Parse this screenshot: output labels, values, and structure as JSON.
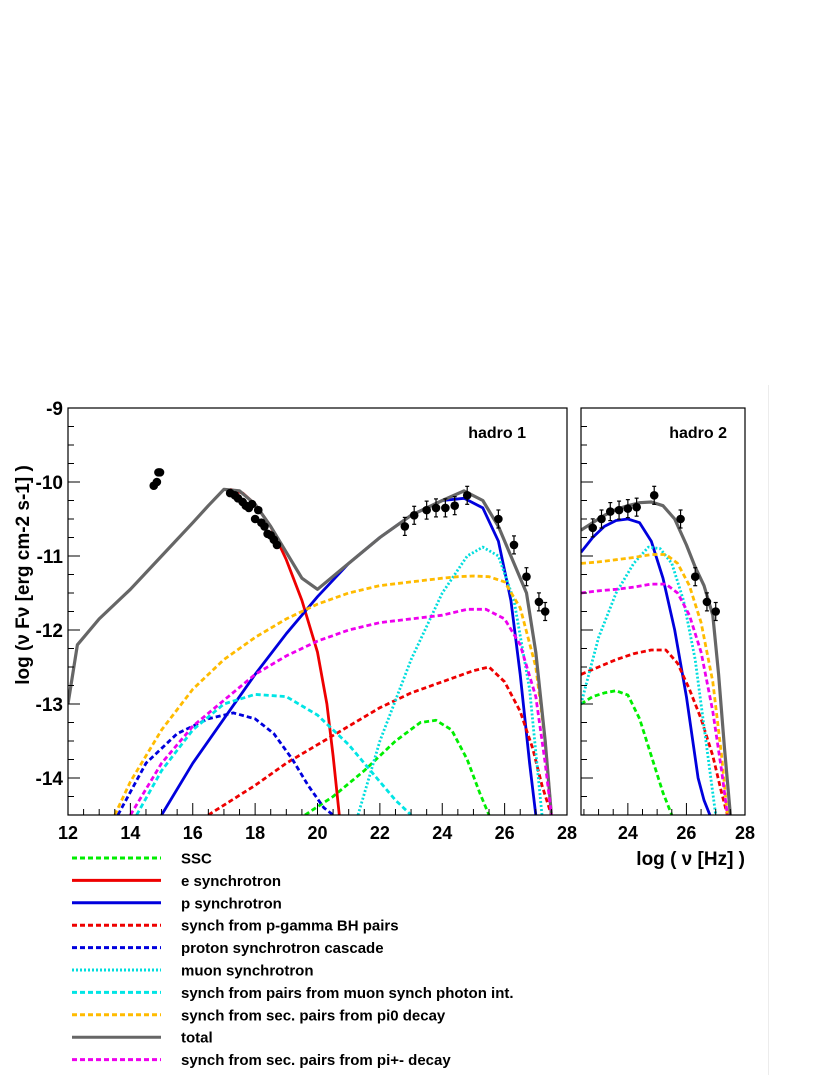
{
  "chart_data": [
    {
      "type": "line",
      "title": "hadro 1",
      "ylabel": "log (ν Fν [erg cm-2 s-1] )",
      "xlim": [
        12,
        28
      ],
      "ylim": [
        -14.5,
        -9
      ],
      "xticks": [
        "12",
        "14",
        "16",
        "18",
        "20",
        "22",
        "24",
        "26",
        "28"
      ],
      "yticks": [
        "-9",
        "-10",
        "-11",
        "-12",
        "-13",
        "-14"
      ],
      "series": [
        {
          "name": "SSC",
          "color": "#00ee00",
          "style": "dashed",
          "x": [
            19.6,
            20.5,
            21.5,
            22.5,
            23.3,
            23.8,
            24.3,
            24.8,
            25.2,
            25.5
          ],
          "y": [
            -14.5,
            -14.25,
            -13.9,
            -13.5,
            -13.25,
            -13.22,
            -13.35,
            -13.75,
            -14.2,
            -14.5
          ]
        },
        {
          "name": "e synchrotron",
          "color": "#ee0000",
          "style": "solid",
          "x": [
            17.2,
            17.6,
            18,
            18.5,
            19,
            19.5,
            20,
            20.3,
            20.5,
            20.7
          ],
          "y": [
            -10.1,
            -10.15,
            -10.3,
            -10.6,
            -11.05,
            -11.6,
            -12.3,
            -13,
            -13.7,
            -14.5
          ]
        },
        {
          "name": "p synchrotron",
          "color": "#0000dd",
          "style": "solid",
          "x": [
            15,
            16,
            17,
            18,
            19,
            20,
            21,
            22,
            23,
            24,
            24.7,
            25.3,
            25.8,
            26.2,
            26.5,
            26.8,
            27
          ],
          "y": [
            -14.5,
            -13.8,
            -13.2,
            -12.6,
            -12.05,
            -11.55,
            -11.1,
            -10.75,
            -10.45,
            -10.25,
            -10.22,
            -10.35,
            -10.8,
            -11.6,
            -12.6,
            -13.8,
            -14.5
          ]
        },
        {
          "name": "synch from p-gamma BH pairs",
          "color": "#ee0000",
          "style": "dashed",
          "x": [
            16.5,
            18,
            19,
            20,
            21,
            22,
            23,
            24,
            25,
            25.5,
            26,
            26.5,
            26.9,
            27.2,
            27.5
          ],
          "y": [
            -14.5,
            -14.1,
            -13.8,
            -13.55,
            -13.3,
            -13.05,
            -12.85,
            -12.7,
            -12.55,
            -12.5,
            -12.7,
            -13.1,
            -13.6,
            -14.1,
            -14.5
          ]
        },
        {
          "name": "proton synchrotron cascade",
          "color": "#0000dd",
          "style": "dashed",
          "x": [
            13.6,
            14.5,
            15.5,
            16.5,
            17.3,
            18,
            18.6,
            19.2,
            19.7,
            20.2,
            20.5
          ],
          "y": [
            -14.5,
            -13.8,
            -13.4,
            -13.2,
            -13.12,
            -13.2,
            -13.4,
            -13.75,
            -14.1,
            -14.4,
            -14.5
          ]
        },
        {
          "name": "muon synchrotron",
          "color": "#00dddd",
          "style": "dotted",
          "x": [
            21.3,
            22,
            23,
            24,
            24.8,
            25.3,
            25.8,
            26.3,
            26.8,
            27.2
          ],
          "y": [
            -14.5,
            -13.5,
            -12.4,
            -11.5,
            -11,
            -10.88,
            -11,
            -11.6,
            -12.8,
            -14.5
          ]
        },
        {
          "name": "synch from pairs from muon synch photon int.",
          "color": "#00e5e5",
          "style": "dashed",
          "x": [
            14.2,
            15,
            16,
            17,
            18,
            19,
            20,
            21,
            21.8,
            22.5,
            23
          ],
          "y": [
            -14.5,
            -13.9,
            -13.35,
            -13,
            -12.87,
            -12.9,
            -13.15,
            -13.55,
            -13.95,
            -14.3,
            -14.5
          ]
        },
        {
          "name": "synch from sec. pairs from pi0 decay",
          "color": "#ffbb00",
          "style": "dashed",
          "x": [
            13.5,
            14,
            15,
            16,
            17,
            18,
            19,
            20,
            21,
            22,
            23,
            24,
            24.5,
            25,
            25.5,
            26,
            26.5,
            27,
            27.3,
            27.5
          ],
          "y": [
            -14.5,
            -14.05,
            -13.35,
            -12.8,
            -12.4,
            -12.1,
            -11.85,
            -11.65,
            -11.5,
            -11.4,
            -11.35,
            -11.3,
            -11.28,
            -11.27,
            -11.28,
            -11.35,
            -11.7,
            -12.5,
            -13.5,
            -14.5
          ]
        },
        {
          "name": "total",
          "color": "#666666",
          "style": "solid",
          "x": [
            12,
            12.3,
            13,
            14,
            15,
            16,
            16.5,
            17,
            17.5,
            18,
            18.5,
            19,
            19.5,
            20,
            21,
            22,
            23,
            24,
            24.7,
            25.3,
            25.8,
            26.3,
            26.7,
            27,
            27.3,
            27.5
          ],
          "y": [
            -13,
            -12.2,
            -11.85,
            -11.45,
            -11,
            -10.55,
            -10.32,
            -10.1,
            -10.12,
            -10.3,
            -10.6,
            -10.95,
            -11.3,
            -11.45,
            -11.1,
            -10.75,
            -10.45,
            -10.25,
            -10.12,
            -10.25,
            -10.6,
            -11.1,
            -11.5,
            -12.3,
            -13.5,
            -14.5
          ]
        },
        {
          "name": "synch from sec. pairs from pi+- decay",
          "color": "#ee00ee",
          "style": "dashed",
          "x": [
            14,
            15,
            16,
            17,
            18,
            19,
            20,
            21,
            22,
            23,
            24,
            24.8,
            25.4,
            26,
            26.5,
            27,
            27.3,
            27.5
          ],
          "y": [
            -14.5,
            -13.8,
            -13.3,
            -12.95,
            -12.6,
            -12.35,
            -12.15,
            -12,
            -11.9,
            -11.85,
            -11.8,
            -11.72,
            -11.72,
            -11.85,
            -12.2,
            -12.9,
            -13.8,
            -14.5
          ]
        }
      ],
      "data_points": {
        "x": [
          14.75,
          14.85,
          14.9,
          14.95,
          17.2,
          17.35,
          17.45,
          17.6,
          17.7,
          17.8,
          17.9,
          18.0,
          18.1,
          18.2,
          18.3,
          18.4,
          18.5,
          18.6,
          18.7,
          22.8,
          23.1,
          23.5,
          23.8,
          24.1,
          24.4,
          24.8,
          25.8,
          26.3,
          26.7,
          27.1,
          27.3
        ],
        "y": [
          -10.05,
          -10.0,
          -9.87,
          -9.87,
          -10.15,
          -10.18,
          -10.22,
          -10.27,
          -10.32,
          -10.35,
          -10.3,
          -10.5,
          -10.38,
          -10.55,
          -10.6,
          -10.7,
          -10.72,
          -10.78,
          -10.85,
          -10.6,
          -10.45,
          -10.38,
          -10.35,
          -10.35,
          -10.32,
          -10.18,
          -10.5,
          -10.85,
          -11.28,
          -11.62,
          -11.75
        ]
      }
    },
    {
      "type": "line",
      "title": "hadro 2",
      "xlabel": "log ( ν  [Hz] )",
      "xlim": [
        22.4,
        28
      ],
      "ylim": [
        -14.5,
        -9
      ],
      "xticks": [
        "24",
        "26",
        "28"
      ],
      "series": [
        {
          "name": "SSC",
          "color": "#00ee00",
          "style": "dashed",
          "x": [
            22.4,
            22.8,
            23.2,
            23.6,
            24,
            24.4,
            24.8,
            25.2,
            25.5
          ],
          "y": [
            -13.0,
            -12.9,
            -12.85,
            -12.82,
            -12.88,
            -13.2,
            -13.7,
            -14.2,
            -14.5
          ]
        },
        {
          "name": "p synchrotron",
          "color": "#0000dd",
          "style": "solid",
          "x": [
            22.4,
            22.8,
            23.2,
            23.6,
            24,
            24.4,
            24.8,
            25.2,
            25.6,
            26,
            26.4,
            26.6,
            26.8
          ],
          "y": [
            -10.95,
            -10.75,
            -10.6,
            -10.52,
            -10.5,
            -10.55,
            -10.8,
            -11.3,
            -12,
            -12.9,
            -14,
            -14.3,
            -14.5
          ]
        },
        {
          "name": "synch from p-gamma BH pairs",
          "color": "#ee0000",
          "style": "dashed",
          "x": [
            22.4,
            23,
            23.6,
            24.2,
            24.8,
            25.3,
            25.7,
            26.1,
            26.5,
            26.9,
            27.2,
            27.4
          ],
          "y": [
            -12.6,
            -12.5,
            -12.4,
            -12.32,
            -12.27,
            -12.27,
            -12.45,
            -12.8,
            -13.2,
            -13.7,
            -14.2,
            -14.5
          ]
        },
        {
          "name": "muon synchrotron",
          "color": "#00dddd",
          "style": "dotted",
          "x": [
            22.4,
            23,
            23.6,
            24.2,
            24.7,
            25.1,
            25.5,
            25.9,
            26.3,
            26.7,
            27
          ],
          "y": [
            -13,
            -12.1,
            -11.5,
            -11.1,
            -10.88,
            -10.9,
            -11.1,
            -11.6,
            -12.4,
            -13.6,
            -14.5
          ]
        },
        {
          "name": "synch from sec. pairs from pi0 decay",
          "color": "#ffbb00",
          "style": "dashed",
          "x": [
            22.4,
            23,
            23.6,
            24.2,
            24.8,
            25.3,
            25.7,
            26.1,
            26.5,
            26.9,
            27.2,
            27.4
          ],
          "y": [
            -11.1,
            -11.08,
            -11.05,
            -11.02,
            -10.98,
            -10.98,
            -11.1,
            -11.4,
            -11.9,
            -12.7,
            -13.7,
            -14.5
          ]
        },
        {
          "name": "total",
          "color": "#666666",
          "style": "solid",
          "x": [
            22.4,
            22.8,
            23.2,
            23.6,
            24,
            24.4,
            24.8,
            25.2,
            25.6,
            26,
            26.3,
            26.6,
            26.9,
            27.1,
            27.3,
            27.5
          ],
          "y": [
            -10.65,
            -10.55,
            -10.45,
            -10.37,
            -10.32,
            -10.28,
            -10.27,
            -10.32,
            -10.5,
            -10.85,
            -11.15,
            -11.4,
            -11.8,
            -12.6,
            -13.6,
            -14.5
          ]
        },
        {
          "name": "synch from sec. pairs from pi+- decay",
          "color": "#ee00ee",
          "style": "dashed",
          "x": [
            22.4,
            23,
            23.6,
            24.2,
            24.8,
            25.3,
            25.7,
            26.1,
            26.5,
            26.9,
            27.2,
            27.4
          ],
          "y": [
            -11.5,
            -11.47,
            -11.45,
            -11.42,
            -11.38,
            -11.38,
            -11.5,
            -11.8,
            -12.3,
            -13.1,
            -13.9,
            -14.5
          ]
        }
      ],
      "data_points": {
        "x": [
          22.8,
          23.1,
          23.4,
          23.7,
          24.0,
          24.3,
          24.9,
          25.8,
          26.3,
          26.7,
          27.0
        ],
        "y": [
          -10.62,
          -10.5,
          -10.4,
          -10.38,
          -10.36,
          -10.34,
          -10.18,
          -10.5,
          -11.28,
          -11.62,
          -11.75
        ]
      }
    }
  ],
  "legend": [
    {
      "label": "SSC",
      "color": "#00ee00",
      "style": "dashed"
    },
    {
      "label": "e synchrotron",
      "color": "#ee0000",
      "style": "solid"
    },
    {
      "label": "p synchrotron",
      "color": "#0000dd",
      "style": "solid"
    },
    {
      "label": "synch from p-gamma BH pairs",
      "color": "#ee0000",
      "style": "dashed"
    },
    {
      "label": "proton synchrotron cascade",
      "color": "#0000dd",
      "style": "dashed"
    },
    {
      "label": "muon synchrotron",
      "color": "#00dddd",
      "style": "dotted"
    },
    {
      "label": "synch from pairs from muon synch photon int.",
      "color": "#00e5e5",
      "style": "dashed"
    },
    {
      "label": "synch from sec. pairs from pi0 decay",
      "color": "#ffbb00",
      "style": "dashed"
    },
    {
      "label": "total",
      "color": "#666666",
      "style": "solid"
    },
    {
      "label": "synch from sec. pairs from pi+- decay",
      "color": "#ee00ee",
      "style": "dashed"
    }
  ]
}
